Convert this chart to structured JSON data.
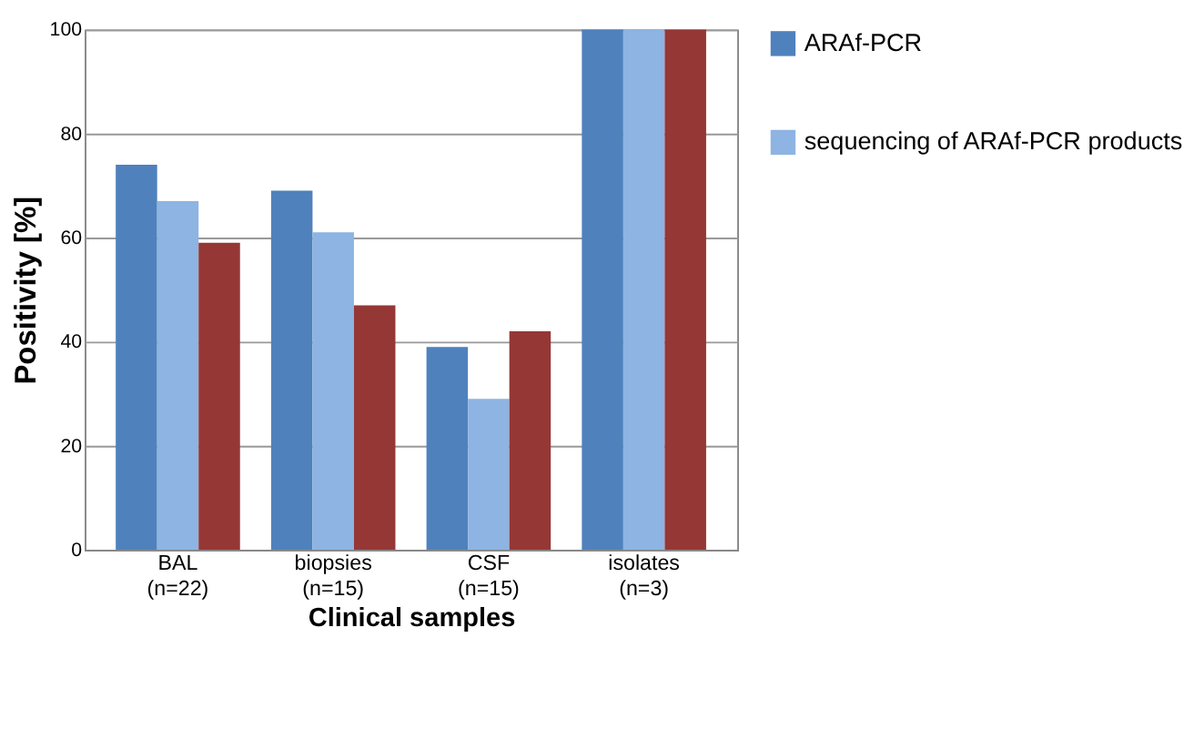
{
  "chart_data": {
    "type": "bar",
    "xlabel": "Clinical samples",
    "ylabel": "Positivity [%]",
    "categories": [
      "BAL\n(n=22)",
      "biopsies\n(n=15)",
      "CSF\n(n=15)",
      "isolates\n(n=3)"
    ],
    "series": [
      {
        "name": "ARAf-PCR",
        "color": "#4f81bd",
        "values": [
          74,
          69,
          39,
          100
        ]
      },
      {
        "name": "sequencing of ARAf-PCR products",
        "color": "#8db4e2",
        "values": [
          67,
          61,
          29,
          100
        ]
      },
      {
        "color": "#953735",
        "values": [
          59,
          47,
          42,
          100
        ]
      }
    ],
    "ylim": [
      0,
      100
    ],
    "yticks": [
      0,
      20,
      40,
      60,
      80,
      100
    ],
    "grid": "y",
    "legend": "right"
  }
}
